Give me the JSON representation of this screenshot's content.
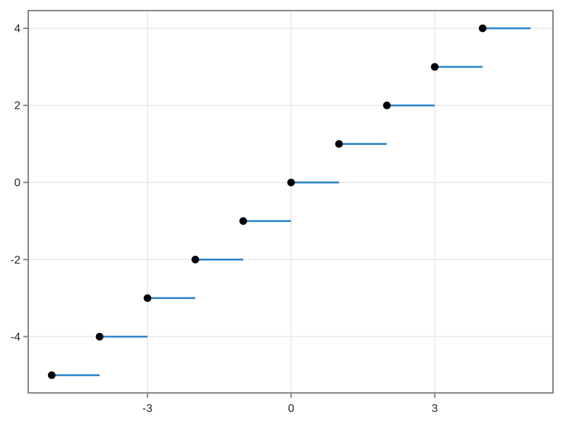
{
  "chart_data": {
    "type": "line",
    "subtype": "step-post-with-markers",
    "title": "",
    "xlabel": "",
    "ylabel": "",
    "description": "Step function y = floor(x); filled dot at closed left endpoint of each unit interval",
    "x": [
      -5,
      -4,
      -3,
      -2,
      -1,
      0,
      1,
      2,
      3,
      4
    ],
    "y": [
      -5,
      -4,
      -3,
      -2,
      -1,
      0,
      1,
      2,
      3,
      4
    ],
    "segments": [
      {
        "x_start": -5,
        "x_end": -4,
        "y": -5
      },
      {
        "x_start": -4,
        "x_end": -3,
        "y": -4
      },
      {
        "x_start": -3,
        "x_end": -2,
        "y": -3
      },
      {
        "x_start": -2,
        "x_end": -1,
        "y": -2
      },
      {
        "x_start": -1,
        "x_end": 0,
        "y": -1
      },
      {
        "x_start": 0,
        "x_end": 1,
        "y": 0
      },
      {
        "x_start": 1,
        "x_end": 2,
        "y": 1
      },
      {
        "x_start": 2,
        "x_end": 3,
        "y": 2
      },
      {
        "x_start": 3,
        "x_end": 4,
        "y": 3
      },
      {
        "x_start": 4,
        "x_end": 5,
        "y": 4
      }
    ],
    "markers": [
      {
        "x": -5,
        "y": -5
      },
      {
        "x": -4,
        "y": -4
      },
      {
        "x": -3,
        "y": -3
      },
      {
        "x": -2,
        "y": -2
      },
      {
        "x": -1,
        "y": -1
      },
      {
        "x": 0,
        "y": 0
      },
      {
        "x": 1,
        "y": 1
      },
      {
        "x": 2,
        "y": 2
      },
      {
        "x": 3,
        "y": 3
      },
      {
        "x": 4,
        "y": 4
      }
    ],
    "xticks": [
      {
        "value": -3,
        "label": "-3"
      },
      {
        "value": 0,
        "label": "0"
      },
      {
        "value": 3,
        "label": "3"
      }
    ],
    "yticks": [
      {
        "value": -4,
        "label": "-4"
      },
      {
        "value": -2,
        "label": "-2"
      },
      {
        "value": 0,
        "label": "0"
      },
      {
        "value": 2,
        "label": "2"
      },
      {
        "value": 4,
        "label": "4"
      }
    ],
    "xlim": [
      -5.49,
      5.47
    ],
    "ylim": [
      -5.46,
      4.46
    ],
    "grid": true,
    "legend": null,
    "colors": {
      "line": "#2882c8",
      "marker": "#000000",
      "grid": "#e8e8e8",
      "spine": "#838383",
      "tick_mark": "#838383",
      "tick_text": "#262626",
      "background": "#ffffff"
    },
    "marker_radius": 5.4,
    "line_width": 2.6
  }
}
